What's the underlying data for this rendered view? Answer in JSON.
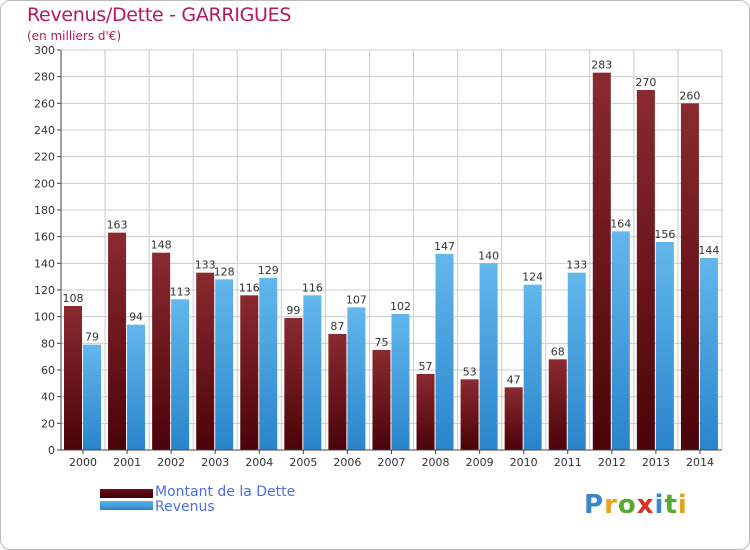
{
  "header": {
    "title": "Revenus/Dette - GARRIGUES",
    "subtitle": "(en milliers d'€)"
  },
  "legend": {
    "debt_label": "Montant de la Dette",
    "revenue_label": "Revenus"
  },
  "logo": {
    "text": "Proxiti",
    "letters": [
      "P",
      "r",
      "o",
      "x",
      "i",
      "t",
      "i"
    ],
    "letter_colors": [
      "#3a86c8",
      "#e8a21b",
      "#58a832",
      "#d6322a",
      "#3a86c8",
      "#58a832",
      "#e8a21b"
    ]
  },
  "colors": {
    "debt_top": "#8a2a30",
    "debt_bottom": "#4a0309",
    "revenue_top": "#62b8ec",
    "revenue_bottom": "#2a84cb",
    "grid": "#cccccc",
    "axis_text": "#333333",
    "title": "#b5185b",
    "legend_text": "#4c6fe0"
  },
  "chart_data": {
    "type": "bar",
    "title": "Revenus/Dette - GARRIGUES",
    "subtitle": "(en milliers d'€)",
    "xlabel": "",
    "ylabel": "",
    "ylim": [
      0,
      300
    ],
    "yticks": [
      0,
      20,
      40,
      60,
      80,
      100,
      120,
      140,
      160,
      180,
      200,
      220,
      240,
      260,
      280,
      300
    ],
    "grid": true,
    "legend_position": "bottom-left",
    "categories": [
      "2000",
      "2001",
      "2002",
      "2003",
      "2004",
      "2005",
      "2006",
      "2007",
      "2008",
      "2009",
      "2010",
      "2011",
      "2012",
      "2013",
      "2014"
    ],
    "series": [
      {
        "name": "Montant de la Dette",
        "values": [
          108,
          163,
          148,
          133,
          116,
          99,
          87,
          75,
          57,
          53,
          47,
          68,
          283,
          270,
          260
        ]
      },
      {
        "name": "Revenus",
        "values": [
          79,
          94,
          113,
          128,
          129,
          116,
          107,
          102,
          147,
          140,
          124,
          133,
          164,
          156,
          144
        ]
      }
    ]
  }
}
